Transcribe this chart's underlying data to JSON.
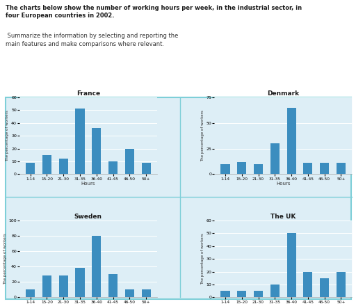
{
  "hours_labels": [
    "1-14",
    "15-20",
    "21-30",
    "31-35",
    "36-40",
    "41-45",
    "46-50",
    "50+"
  ],
  "france": {
    "title": "France",
    "values": [
      9,
      15,
      12,
      51,
      36,
      10,
      20,
      9
    ],
    "ylim": [
      0,
      60
    ],
    "yticks": [
      0,
      10,
      20,
      30,
      40,
      50,
      60
    ]
  },
  "denmark": {
    "title": "Denmark",
    "values": [
      10,
      12,
      10,
      30,
      65,
      11,
      11,
      11
    ],
    "ylim": [
      0,
      75
    ],
    "yticks": [
      0,
      25,
      50,
      75
    ]
  },
  "sweden": {
    "title": "Sweden",
    "values": [
      10,
      28,
      28,
      38,
      80,
      30,
      10,
      10
    ],
    "ylim": [
      0,
      100
    ],
    "yticks": [
      0,
      20,
      40,
      60,
      80,
      100
    ]
  },
  "uk": {
    "title": "The UK",
    "values": [
      5,
      5,
      5,
      10,
      50,
      20,
      15,
      20
    ],
    "ylim": [
      0,
      60
    ],
    "yticks": [
      0,
      10,
      20,
      30,
      40,
      50,
      60
    ]
  },
  "bar_color": "#3b8dbf",
  "bg_color": "#ddeef6",
  "outer_border_color": "#7ecfd8",
  "title_bold": "The charts below show the number of working hours per week, in the industrial sector, in\nfour European countries in 2002.",
  "title_normal": " Summarize the information by selecting and reporting the\nmain features and make comparisons where relevant."
}
